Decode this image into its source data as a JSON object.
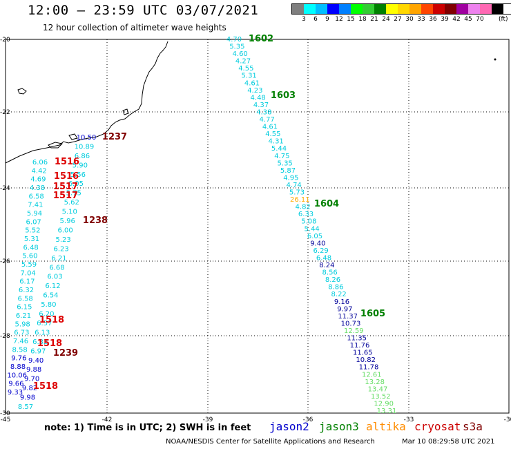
{
  "header": {
    "title": "12:00 — 23:59 UTC 03/07/2021",
    "subtitle": "12 hour collection of altimeter wave heights"
  },
  "legend": {
    "colors": [
      "#7f7f7f",
      "#00ffff",
      "#00bfff",
      "#0000ff",
      "#0080ff",
      "#00ff00",
      "#32cd32",
      "#008000",
      "#ffff00",
      "#ffd700",
      "#ffa500",
      "#ff4500",
      "#cc0000",
      "#800000",
      "#a000a0",
      "#ee82ee",
      "#ff69b4",
      "#000000"
    ],
    "labels": [
      "3",
      "6",
      "9",
      "12",
      "15",
      "18",
      "21",
      "24",
      "27",
      "30",
      "33",
      "36",
      "39",
      "42",
      "45",
      "70"
    ],
    "unit": "(ft)"
  },
  "axes": {
    "lon_ticks": [
      "-45",
      "-42",
      "-39",
      "-36",
      "-33",
      "-30"
    ],
    "lat_ticks": [
      "-20",
      "-22",
      "-24",
      "-26",
      "-28",
      "-30"
    ]
  },
  "footer": {
    "note": "note: 1) Time is in UTC; 2) SWH is in feet",
    "satellites": [
      {
        "name": "jason2",
        "color": "#0000cc"
      },
      {
        "name": "jason3",
        "color": "#008000"
      },
      {
        "name": "altika",
        "color": "#ff8c00"
      },
      {
        "name": "cryosat",
        "color": "#cc0000"
      },
      {
        "name": "s3a",
        "color": "#800000"
      }
    ],
    "credit": "NOAA/NESDIS Center for Satellite Applications and Research",
    "timestamp": "Mar 10 08:29:58 UTC 2021"
  },
  "map_data": {
    "colors": {
      "cyan": "#00ccdd",
      "blue": "#0000cc",
      "lightgreen": "#66dd66",
      "orange": "#ffaa00",
      "navy": "#000099"
    },
    "track_east": [
      {
        "v": "4.70",
        "c": "cyan"
      },
      {
        "v": "5.35",
        "c": "cyan"
      },
      {
        "v": "4.60",
        "c": "cyan"
      },
      {
        "v": "4.27",
        "c": "cyan"
      },
      {
        "v": "4.55",
        "c": "cyan"
      },
      {
        "v": "5.31",
        "c": "cyan"
      },
      {
        "v": "4.61",
        "c": "cyan"
      },
      {
        "v": "4.23",
        "c": "cyan"
      },
      {
        "v": "4.48",
        "c": "cyan"
      },
      {
        "v": "4.37",
        "c": "cyan"
      },
      {
        "v": "4.38",
        "c": "cyan"
      },
      {
        "v": "4.77",
        "c": "cyan"
      },
      {
        "v": "4.61",
        "c": "cyan"
      },
      {
        "v": "4.55",
        "c": "cyan"
      },
      {
        "v": "4.31",
        "c": "cyan"
      },
      {
        "v": "5.44",
        "c": "cyan"
      },
      {
        "v": "4.75",
        "c": "cyan"
      },
      {
        "v": "5.35",
        "c": "cyan"
      },
      {
        "v": "5.87",
        "c": "cyan"
      },
      {
        "v": "4.95",
        "c": "cyan"
      },
      {
        "v": "4.74",
        "c": "cyan"
      },
      {
        "v": "5.73",
        "c": "cyan"
      },
      {
        "v": "26.11",
        "c": "orange"
      },
      {
        "v": "4.82",
        "c": "cyan"
      },
      {
        "v": "6.33",
        "c": "cyan"
      },
      {
        "v": "5.08",
        "c": "cyan"
      },
      {
        "v": "5.44",
        "c": "cyan"
      },
      {
        "v": "6.05",
        "c": "cyan"
      },
      {
        "v": "9.40",
        "c": "navy"
      },
      {
        "v": "6.29",
        "c": "cyan"
      },
      {
        "v": "6.48",
        "c": "cyan"
      },
      {
        "v": "8.24",
        "c": "navy"
      },
      {
        "v": "8.56",
        "c": "cyan"
      },
      {
        "v": "8.26",
        "c": "cyan"
      },
      {
        "v": "8.86",
        "c": "cyan"
      },
      {
        "v": "8.22",
        "c": "cyan"
      },
      {
        "v": "9.16",
        "c": "navy"
      },
      {
        "v": "9.97",
        "c": "navy"
      },
      {
        "v": "11.37",
        "c": "navy"
      },
      {
        "v": "10.73",
        "c": "navy"
      },
      {
        "v": "12.59",
        "c": "lightgreen"
      },
      {
        "v": "11.35",
        "c": "navy"
      },
      {
        "v": "11.76",
        "c": "navy"
      },
      {
        "v": "11.65",
        "c": "navy"
      },
      {
        "v": "10.82",
        "c": "navy"
      },
      {
        "v": "11.78",
        "c": "navy"
      },
      {
        "v": "12.61",
        "c": "lightgreen"
      },
      {
        "v": "13.28",
        "c": "lightgreen"
      },
      {
        "v": "13.47",
        "c": "lightgreen"
      },
      {
        "v": "13.52",
        "c": "lightgreen"
      },
      {
        "v": "12.90",
        "c": "lightgreen"
      },
      {
        "v": "13.31",
        "c": "lightgreen"
      }
    ],
    "track_mid": [
      {
        "v": "10.50",
        "c": "blue"
      },
      {
        "v": "10.89",
        "c": "cyan"
      },
      {
        "v": "6.86",
        "c": "cyan"
      },
      {
        "v": "5.90",
        "c": "cyan"
      },
      {
        "v": "5.56",
        "c": "cyan"
      },
      {
        "v": "6.05",
        "c": "cyan"
      },
      {
        "v": "5.75",
        "c": "cyan"
      },
      {
        "v": "5.62",
        "c": "cyan"
      },
      {
        "v": "5.10",
        "c": "cyan"
      },
      {
        "v": "5.96",
        "c": "cyan"
      },
      {
        "v": "6.00",
        "c": "cyan"
      },
      {
        "v": "5.23",
        "c": "cyan"
      },
      {
        "v": "6.23",
        "c": "cyan"
      },
      {
        "v": "6.21",
        "c": "cyan"
      },
      {
        "v": "6.68",
        "c": "cyan"
      },
      {
        "v": "6.03",
        "c": "cyan"
      },
      {
        "v": "6.12",
        "c": "cyan"
      },
      {
        "v": "6.54",
        "c": "cyan"
      },
      {
        "v": "5.80",
        "c": "cyan"
      },
      {
        "v": "6.20",
        "c": "cyan"
      },
      {
        "v": "6.57",
        "c": "cyan"
      },
      {
        "v": "6.13",
        "c": "cyan"
      },
      {
        "v": "6.32",
        "c": "cyan"
      },
      {
        "v": "6.97",
        "c": "cyan"
      },
      {
        "v": "9.40",
        "c": "blue"
      },
      {
        "v": "9.88",
        "c": "blue"
      },
      {
        "v": "9.70",
        "c": "blue"
      },
      {
        "v": "9.82",
        "c": "blue"
      },
      {
        "v": "9.98",
        "c": "blue"
      },
      {
        "v": "8.57",
        "c": "cyan"
      }
    ],
    "track_west": [
      {
        "v": "6.06",
        "c": "cyan"
      },
      {
        "v": "4.42",
        "c": "cyan"
      },
      {
        "v": "4.69",
        "c": "cyan"
      },
      {
        "v": "4.38",
        "c": "cyan"
      },
      {
        "v": "6.58",
        "c": "cyan"
      },
      {
        "v": "7.41",
        "c": "cyan"
      },
      {
        "v": "5.94",
        "c": "cyan"
      },
      {
        "v": "6.07",
        "c": "cyan"
      },
      {
        "v": "5.52",
        "c": "cyan"
      },
      {
        "v": "5.31",
        "c": "cyan"
      },
      {
        "v": "6.48",
        "c": "cyan"
      },
      {
        "v": "5.60",
        "c": "cyan"
      },
      {
        "v": "5.59",
        "c": "cyan"
      },
      {
        "v": "7.04",
        "c": "cyan"
      },
      {
        "v": "6.17",
        "c": "cyan"
      },
      {
        "v": "6.32",
        "c": "cyan"
      },
      {
        "v": "6.58",
        "c": "cyan"
      },
      {
        "v": "6.15",
        "c": "cyan"
      },
      {
        "v": "6.21",
        "c": "cyan"
      },
      {
        "v": "5.98",
        "c": "cyan"
      },
      {
        "v": "6.73",
        "c": "cyan"
      },
      {
        "v": "7.46",
        "c": "cyan"
      },
      {
        "v": "8.58",
        "c": "cyan"
      },
      {
        "v": "9.76",
        "c": "blue"
      },
      {
        "v": "8.88",
        "c": "blue"
      },
      {
        "v": "10.06",
        "c": "blue"
      },
      {
        "v": "9.66",
        "c": "blue"
      },
      {
        "v": "9.33",
        "c": "blue"
      }
    ],
    "pass_labels": [
      {
        "t": "1602",
        "c": "#008000"
      },
      {
        "t": "1603",
        "c": "#008000"
      },
      {
        "t": "1604",
        "c": "#008000"
      },
      {
        "t": "1605",
        "c": "#008000"
      },
      {
        "t": "1237",
        "c": "#800000"
      },
      {
        "t": "1238",
        "c": "#800000"
      },
      {
        "t": "1239",
        "c": "#800000"
      },
      {
        "t": "1516",
        "c": "#dd0000"
      },
      {
        "t": "1516",
        "c": "#dd0000"
      },
      {
        "t": "1517",
        "c": "#dd0000"
      },
      {
        "t": "1517",
        "c": "#dd0000"
      },
      {
        "t": "1518",
        "c": "#dd0000"
      },
      {
        "t": "1518",
        "c": "#dd0000"
      },
      {
        "t": "1518",
        "c": "#dd0000"
      }
    ]
  }
}
